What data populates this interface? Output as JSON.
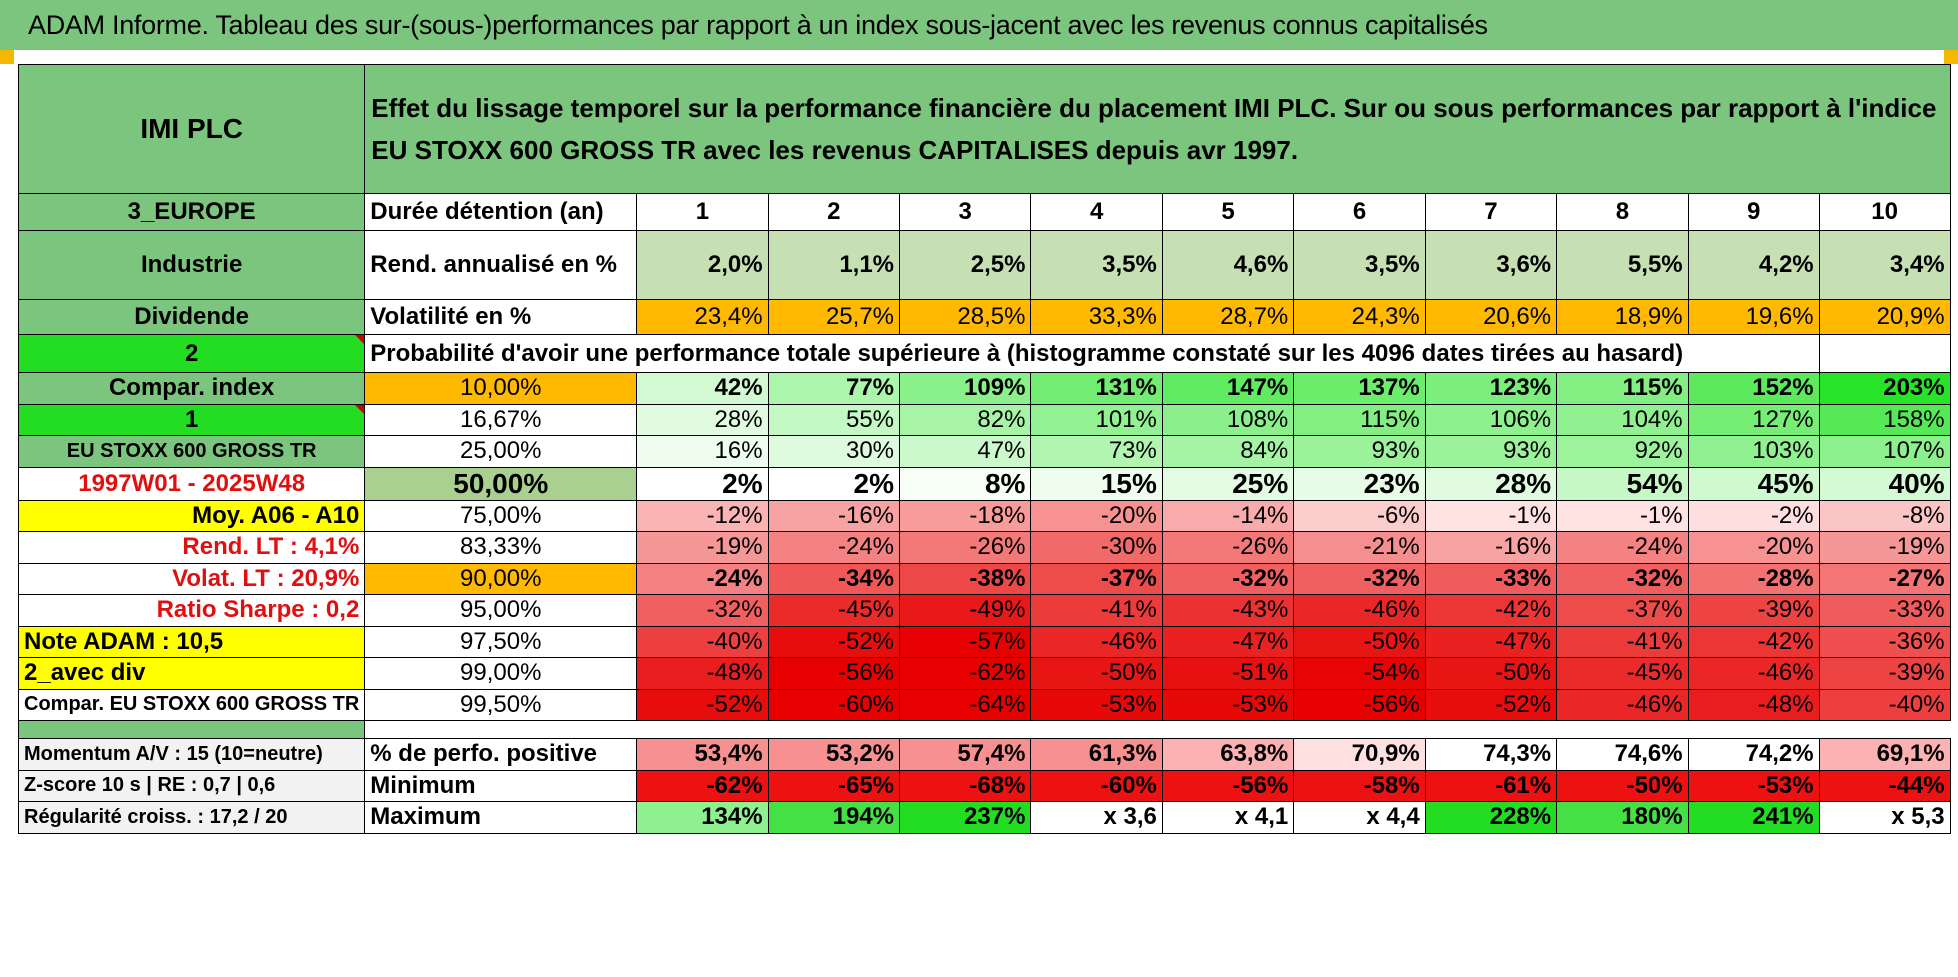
{
  "title": "ADAM Informe. Tableau des sur-(sous-)performances par rapport à un index sous-jacent avec les revenus connus capitalisés",
  "header": {
    "asset": "IMI PLC",
    "description": "Effet du lissage temporel sur la performance financière du placement IMI PLC. Sur ou sous performances par rapport à l'indice EU STOXX 600 GROSS TR avec les revenus CAPITALISES depuis avr 1997."
  },
  "left": {
    "region": "3_EUROPE",
    "sector": "Industrie",
    "income": "Dividende",
    "code2": "2",
    "compar_index": "Compar. index",
    "code1": "1",
    "index_name": "EU STOXX 600 GROSS TR",
    "period": "1997W01 - 2025W48",
    "moy": "Moy. A06 - A10",
    "rend_lt": "Rend. LT :    4,1%",
    "volat_lt": "Volat. LT :    20,9%",
    "sharpe": "Ratio Sharpe :    0,2",
    "note": "Note ADAM : 10,5",
    "avec_div": "2_avec div",
    "compar_full": "Compar. EU STOXX 600 GROSS TR"
  },
  "stats": {
    "duree_label": "Durée détention (an)",
    "years": [
      "1",
      "2",
      "3",
      "4",
      "5",
      "6",
      "7",
      "8",
      "9",
      "10"
    ],
    "rend_label": "Rend. annualisé en %",
    "rend": [
      "2,0%",
      "1,1%",
      "2,5%",
      "3,5%",
      "4,6%",
      "3,5%",
      "3,6%",
      "5,5%",
      "4,2%",
      "3,4%"
    ],
    "vol_label": "Volatilité en %",
    "vol": [
      "23,4%",
      "25,7%",
      "28,5%",
      "33,3%",
      "28,7%",
      "24,3%",
      "20,6%",
      "18,9%",
      "19,6%",
      "20,9%"
    ]
  },
  "prob_title": "Probabilité d'avoir une performance totale supérieure à (histogramme constaté sur les 4096 dates tirées au hasard)",
  "prob_rows": [
    {
      "pct": "10,00%",
      "vals": [
        "42%",
        "77%",
        "109%",
        "131%",
        "147%",
        "137%",
        "123%",
        "115%",
        "152%",
        "203%"
      ]
    },
    {
      "pct": "16,67%",
      "vals": [
        "28%",
        "55%",
        "82%",
        "101%",
        "108%",
        "115%",
        "106%",
        "104%",
        "127%",
        "158%"
      ]
    },
    {
      "pct": "25,00%",
      "vals": [
        "16%",
        "30%",
        "47%",
        "73%",
        "84%",
        "93%",
        "93%",
        "92%",
        "103%",
        "107%"
      ]
    },
    {
      "pct": "50,00%",
      "vals": [
        "2%",
        "2%",
        "8%",
        "15%",
        "25%",
        "23%",
        "28%",
        "54%",
        "45%",
        "40%"
      ]
    },
    {
      "pct": "75,00%",
      "vals": [
        "-12%",
        "-16%",
        "-18%",
        "-20%",
        "-14%",
        "-6%",
        "-1%",
        "-1%",
        "-2%",
        "-8%"
      ]
    },
    {
      "pct": "83,33%",
      "vals": [
        "-19%",
        "-24%",
        "-26%",
        "-30%",
        "-26%",
        "-21%",
        "-16%",
        "-24%",
        "-20%",
        "-19%"
      ]
    },
    {
      "pct": "90,00%",
      "vals": [
        "-24%",
        "-34%",
        "-38%",
        "-37%",
        "-32%",
        "-32%",
        "-33%",
        "-32%",
        "-28%",
        "-27%"
      ]
    },
    {
      "pct": "95,00%",
      "vals": [
        "-32%",
        "-45%",
        "-49%",
        "-41%",
        "-43%",
        "-46%",
        "-42%",
        "-37%",
        "-39%",
        "-33%"
      ]
    },
    {
      "pct": "97,50%",
      "vals": [
        "-40%",
        "-52%",
        "-57%",
        "-46%",
        "-47%",
        "-50%",
        "-47%",
        "-41%",
        "-42%",
        "-36%"
      ]
    },
    {
      "pct": "99,00%",
      "vals": [
        "-48%",
        "-56%",
        "-62%",
        "-50%",
        "-51%",
        "-54%",
        "-50%",
        "-45%",
        "-46%",
        "-39%"
      ]
    },
    {
      "pct": "99,50%",
      "vals": [
        "-52%",
        "-60%",
        "-64%",
        "-53%",
        "-53%",
        "-56%",
        "-52%",
        "-46%",
        "-48%",
        "-40%"
      ]
    }
  ],
  "bottom": [
    {
      "left": "Momentum A/V : 15 (10=neutre)",
      "label": "% de perfo. positive",
      "vals": [
        "53,4%",
        "53,2%",
        "57,4%",
        "61,3%",
        "63,8%",
        "70,9%",
        "74,3%",
        "74,6%",
        "74,2%",
        "69,1%"
      ]
    },
    {
      "left": "Z-score 10 s | RE : 0,7 | 0,6",
      "label": "Minimum",
      "vals": [
        "-62%",
        "-65%",
        "-68%",
        "-60%",
        "-56%",
        "-58%",
        "-61%",
        "-50%",
        "-53%",
        "-44%"
      ]
    },
    {
      "left": "Régularité croiss. : 17,2 / 20",
      "label": "Maximum",
      "vals": [
        "134%",
        "194%",
        "237%",
        "x 3,6",
        "x 4,1",
        "x 4,4",
        "228%",
        "180%",
        "241%",
        "x 5,3"
      ]
    }
  ],
  "colors": {
    "header_green": "#7cc57e",
    "bright_green": "#22dd22",
    "orange": "#ffb900",
    "yellow": "#ffff00",
    "red": "#e01010"
  }
}
